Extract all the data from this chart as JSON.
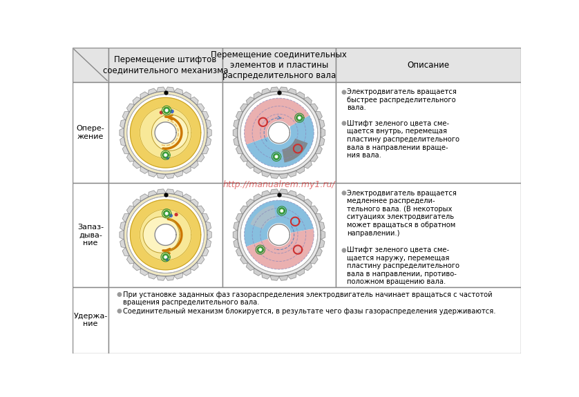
{
  "bg_color": "#ffffff",
  "border_color": "#888888",
  "header_bg": "#e4e4e4",
  "header_texts": [
    "",
    "Перемещение штифтов\nсоединительного механизма",
    "Перемещение соединительных\nэлементов и пластины\nраспределительного вала",
    "Описание"
  ],
  "row_labels": [
    "Опере-\nжение",
    "Запаз-\nдыва-\nние",
    "Удержа-\nние"
  ],
  "desc_r1_b1": "Электродвигатель вращается\nбыстрее распределительного\nвала.",
  "desc_r1_b2": "Штифт зеленого цвета сме-\nщается внутрь, перемещая\nпластину распределительного\nвала в направлении враще-\nния вала.",
  "desc_r2_b1": "Электродвигатель вращается\nмедленнее распредели-\nтельного вала. (В некоторых\nситуациях электродвигатель\nможет вращаться в обратном\nнаправлении.)",
  "desc_r2_b2": "Штифт зеленого цвета сме-\nщается наружу, перемещая\nпластину распределительного\nвала в направлении, противо-\nположном вращению вала.",
  "desc_r3_b1": "При установке заданных фаз газораспределения электродвигатель начинает вращаться с частотой\nвращения распределительного вала.",
  "desc_r3_b2": "Соединительный механизм блокируется, в результате чего фазы газораспределения удерживаются.",
  "watermark": "http://manualrem.my1.ru/",
  "col_bounds": [
    0,
    68,
    280,
    492,
    838
  ],
  "row_bounds": [
    0,
    65,
    255,
    450,
    575
  ]
}
